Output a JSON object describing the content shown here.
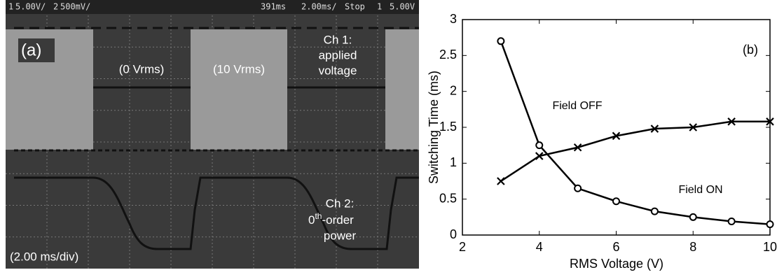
{
  "scope": {
    "header": [
      "1",
      "5.00V/",
      "2",
      "500mV/",
      "391ms",
      "2.00ms/",
      "Stop",
      "1",
      "5.00V"
    ],
    "panel_label": "(a)",
    "label_off": "(0 Vrms)",
    "label_on": "(10 Vrms)",
    "ch1": [
      "Ch 1:",
      "applied",
      "voltage"
    ],
    "ch2": [
      "Ch 2:",
      "0",
      "th",
      "-order",
      "power"
    ],
    "timebase": "(2.00 ms/div)"
  },
  "chart_data": {
    "type": "line",
    "annotation": "(b)",
    "x_label": "RMS Voltage (V)",
    "y_label": "Switching Time (ms)",
    "x": [
      3,
      4,
      5,
      6,
      7,
      8,
      9,
      10
    ],
    "series": [
      {
        "name": "Field ON",
        "color": "#000000",
        "marker": "o",
        "values": [
          2.7,
          1.25,
          0.65,
          0.47,
          0.33,
          0.25,
          0.19,
          0.15
        ]
      },
      {
        "name": "Field OFF",
        "color": "#000000",
        "marker": "x",
        "values": [
          0.75,
          1.1,
          1.22,
          1.38,
          1.48,
          1.5,
          1.58,
          1.58
        ]
      }
    ],
    "xlim": [
      2,
      10
    ],
    "xticks": [
      2,
      4,
      6,
      8,
      10
    ],
    "ylim": [
      0,
      3
    ],
    "yticks": [
      0,
      0.5,
      1,
      1.5,
      2,
      2.5,
      3
    ]
  }
}
